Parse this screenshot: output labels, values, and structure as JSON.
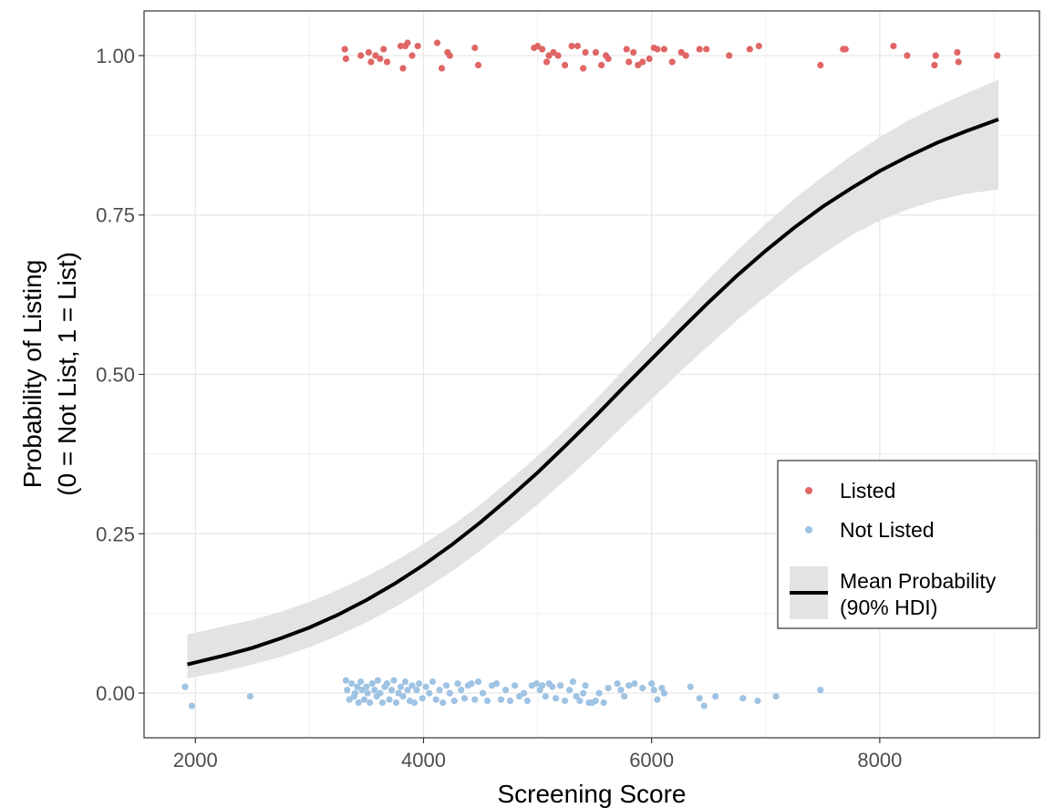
{
  "chart_data": {
    "type": "scatter",
    "xlabel": "Screening Score",
    "ylabel_lines": [
      "Probability of Listing",
      "(0 = Not List, 1 = List)"
    ],
    "xlim": [
      1550,
      9400
    ],
    "ylim": [
      -0.07,
      1.07
    ],
    "x_ticks": [
      2000,
      4000,
      6000,
      8000
    ],
    "x_tick_labels": [
      "2000",
      "4000",
      "6000",
      "8000"
    ],
    "y_ticks": [
      0,
      0.25,
      0.5,
      0.75,
      1
    ],
    "y_tick_labels": [
      "0.00",
      "0.25",
      "0.50",
      "0.75",
      "1.00"
    ],
    "grid": true,
    "legend_position": "bottom-right",
    "colors": {
      "listed": "#e06666",
      "not_listed": "#9fc3e3",
      "line": "#000000",
      "ribbon": "#e3e3e3"
    },
    "series": [
      {
        "name": "Listed",
        "kind": "points",
        "points": [
          [
            3310,
            1.01
          ],
          [
            3320,
            0.995
          ],
          [
            3450,
            1.0
          ],
          [
            3520,
            1.005
          ],
          [
            3540,
            0.99
          ],
          [
            3580,
            1.0
          ],
          [
            3620,
            0.995
          ],
          [
            3650,
            1.01
          ],
          [
            3680,
            0.99
          ],
          [
            3800,
            1.015
          ],
          [
            3820,
            0.98
          ],
          [
            3840,
            1.015
          ],
          [
            3860,
            1.02
          ],
          [
            3900,
            1.0
          ],
          [
            3950,
            1.015
          ],
          [
            4120,
            1.02
          ],
          [
            4160,
            0.98
          ],
          [
            4210,
            1.005
          ],
          [
            4230,
            1.0
          ],
          [
            4450,
            1.012
          ],
          [
            4480,
            0.985
          ],
          [
            4970,
            1.012
          ],
          [
            5000,
            1.015
          ],
          [
            5040,
            1.01
          ],
          [
            5080,
            0.99
          ],
          [
            5100,
            1.0
          ],
          [
            5140,
            1.005
          ],
          [
            5180,
            1.0
          ],
          [
            5240,
            0.985
          ],
          [
            5300,
            1.015
          ],
          [
            5350,
            1.015
          ],
          [
            5400,
            0.98
          ],
          [
            5420,
            1.005
          ],
          [
            5510,
            1.005
          ],
          [
            5560,
            0.985
          ],
          [
            5600,
            1.0
          ],
          [
            5620,
            0.995
          ],
          [
            5780,
            1.01
          ],
          [
            5800,
            0.99
          ],
          [
            5840,
            1.005
          ],
          [
            5880,
            0.985
          ],
          [
            5920,
            0.99
          ],
          [
            5980,
            0.995
          ],
          [
            6020,
            1.012
          ],
          [
            6050,
            1.01
          ],
          [
            6110,
            1.01
          ],
          [
            6180,
            0.99
          ],
          [
            6260,
            1.005
          ],
          [
            6300,
            1.0
          ],
          [
            6420,
            1.01
          ],
          [
            6480,
            1.01
          ],
          [
            6680,
            1.0
          ],
          [
            6860,
            1.01
          ],
          [
            6940,
            1.015
          ],
          [
            7480,
            0.985
          ],
          [
            7680,
            1.01
          ],
          [
            7700,
            1.01
          ],
          [
            8120,
            1.015
          ],
          [
            8240,
            1.0
          ],
          [
            8480,
            0.985
          ],
          [
            8490,
            1.0
          ],
          [
            8680,
            1.005
          ],
          [
            8690,
            0.99
          ],
          [
            9030,
            1.0
          ]
        ]
      },
      {
        "name": "Not Listed",
        "kind": "points",
        "points": [
          [
            1910,
            0.01
          ],
          [
            1970,
            -0.02
          ],
          [
            2480,
            -0.005
          ],
          [
            3320,
            0.02
          ],
          [
            3330,
            0.005
          ],
          [
            3350,
            -0.01
          ],
          [
            3370,
            0.015
          ],
          [
            3390,
            -0.005
          ],
          [
            3400,
            0.0
          ],
          [
            3420,
            0.01
          ],
          [
            3430,
            -0.015
          ],
          [
            3450,
            0.018
          ],
          [
            3460,
            0.005
          ],
          [
            3480,
            -0.01
          ],
          [
            3500,
            0.01
          ],
          [
            3510,
            0.0
          ],
          [
            3530,
            -0.015
          ],
          [
            3550,
            0.015
          ],
          [
            3570,
            0.005
          ],
          [
            3590,
            -0.005
          ],
          [
            3600,
            0.02
          ],
          [
            3620,
            0.0
          ],
          [
            3640,
            -0.015
          ],
          [
            3660,
            0.01
          ],
          [
            3680,
            0.015
          ],
          [
            3700,
            -0.01
          ],
          [
            3720,
            0.005
          ],
          [
            3740,
            0.02
          ],
          [
            3760,
            -0.015
          ],
          [
            3780,
            0.0
          ],
          [
            3800,
            0.01
          ],
          [
            3820,
            -0.005
          ],
          [
            3840,
            0.018
          ],
          [
            3860,
            0.005
          ],
          [
            3880,
            -0.012
          ],
          [
            3900,
            0.012
          ],
          [
            3920,
            -0.015
          ],
          [
            3940,
            0.005
          ],
          [
            3960,
            0.015
          ],
          [
            3990,
            -0.008
          ],
          [
            4020,
            0.01
          ],
          [
            4050,
            0.0
          ],
          [
            4080,
            0.018
          ],
          [
            4110,
            -0.01
          ],
          [
            4140,
            0.005
          ],
          [
            4170,
            -0.015
          ],
          [
            4200,
            0.012
          ],
          [
            4230,
            0.0
          ],
          [
            4270,
            -0.012
          ],
          [
            4300,
            0.015
          ],
          [
            4330,
            0.005
          ],
          [
            4360,
            -0.008
          ],
          [
            4390,
            0.012
          ],
          [
            4420,
            0.015
          ],
          [
            4450,
            -0.01
          ],
          [
            4480,
            0.018
          ],
          [
            4520,
            0.0
          ],
          [
            4560,
            -0.012
          ],
          [
            4600,
            0.012
          ],
          [
            4640,
            0.015
          ],
          [
            4680,
            -0.01
          ],
          [
            4720,
            0.005
          ],
          [
            4760,
            -0.012
          ],
          [
            4800,
            0.012
          ],
          [
            4840,
            -0.005
          ],
          [
            4880,
            0.0
          ],
          [
            4910,
            -0.012
          ],
          [
            4950,
            0.012
          ],
          [
            4990,
            0.015
          ],
          [
            5020,
            0.005
          ],
          [
            5040,
            0.012
          ],
          [
            5070,
            -0.005
          ],
          [
            5100,
            0.015
          ],
          [
            5130,
            0.01
          ],
          [
            5160,
            -0.008
          ],
          [
            5200,
            0.012
          ],
          [
            5240,
            -0.012
          ],
          [
            5280,
            0.005
          ],
          [
            5310,
            0.018
          ],
          [
            5340,
            -0.005
          ],
          [
            5370,
            -0.012
          ],
          [
            5400,
            0.0
          ],
          [
            5420,
            0.012
          ],
          [
            5450,
            -0.015
          ],
          [
            5480,
            -0.015
          ],
          [
            5510,
            -0.012
          ],
          [
            5540,
            0.0
          ],
          [
            5580,
            -0.015
          ],
          [
            5620,
            0.008
          ],
          [
            5700,
            0.015
          ],
          [
            5730,
            0.005
          ],
          [
            5760,
            -0.005
          ],
          [
            5800,
            0.012
          ],
          [
            5850,
            0.015
          ],
          [
            5920,
            0.008
          ],
          [
            6000,
            0.015
          ],
          [
            6020,
            0.005
          ],
          [
            6050,
            -0.01
          ],
          [
            6090,
            0.008
          ],
          [
            6110,
            0.0
          ],
          [
            6340,
            0.01
          ],
          [
            6420,
            -0.008
          ],
          [
            6460,
            -0.02
          ],
          [
            6560,
            -0.005
          ],
          [
            6800,
            -0.008
          ],
          [
            6930,
            -0.012
          ],
          [
            7090,
            -0.005
          ],
          [
            7480,
            0.005
          ]
        ]
      },
      {
        "name": "Mean Probability (90% HDI)",
        "kind": "curve",
        "x": [
          1930,
          2250,
          2500,
          2750,
          3000,
          3250,
          3500,
          3750,
          4000,
          4250,
          4500,
          4750,
          5000,
          5250,
          5500,
          5750,
          6000,
          6250,
          6500,
          6750,
          7000,
          7250,
          7500,
          7750,
          8000,
          8250,
          8500,
          8750,
          9040
        ],
        "y": [
          0.045,
          0.059,
          0.071,
          0.086,
          0.103,
          0.123,
          0.146,
          0.172,
          0.201,
          0.233,
          0.268,
          0.306,
          0.346,
          0.389,
          0.433,
          0.479,
          0.524,
          0.569,
          0.613,
          0.655,
          0.694,
          0.73,
          0.763,
          0.792,
          0.819,
          0.842,
          0.863,
          0.881,
          0.9
        ],
        "lower": [
          0.023,
          0.034,
          0.045,
          0.057,
          0.072,
          0.09,
          0.111,
          0.135,
          0.162,
          0.191,
          0.224,
          0.259,
          0.296,
          0.335,
          0.376,
          0.419,
          0.461,
          0.504,
          0.545,
          0.585,
          0.622,
          0.657,
          0.689,
          0.718,
          0.741,
          0.759,
          0.773,
          0.783,
          0.79
        ],
        "upper": [
          0.092,
          0.105,
          0.115,
          0.128,
          0.143,
          0.162,
          0.183,
          0.207,
          0.234,
          0.263,
          0.296,
          0.333,
          0.372,
          0.414,
          0.459,
          0.506,
          0.554,
          0.602,
          0.649,
          0.694,
          0.736,
          0.775,
          0.81,
          0.843,
          0.872,
          0.898,
          0.92,
          0.94,
          0.962
        ]
      }
    ],
    "legend": [
      {
        "label": "Listed",
        "kind": "point",
        "color": "#e06666"
      },
      {
        "label": "Not Listed",
        "kind": "point",
        "color": "#9fc3e3"
      },
      {
        "label_lines": [
          "Mean Probability",
          "(90% HDI)"
        ],
        "kind": "line-ribbon"
      }
    ]
  }
}
